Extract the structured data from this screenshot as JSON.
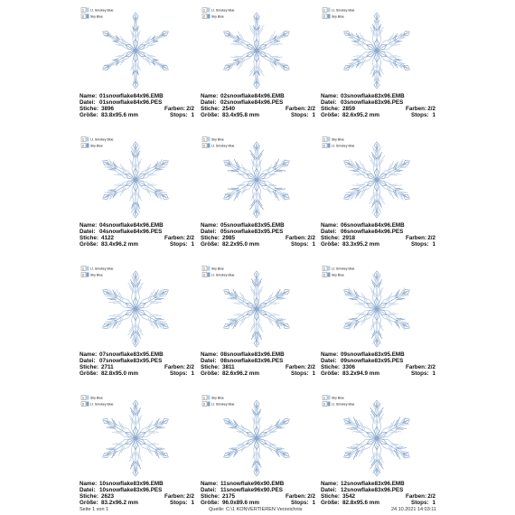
{
  "labels": {
    "name": "Name:",
    "file": "Datei:",
    "stitches": "Stiche:",
    "colors": "Farben:",
    "size": "Größe:",
    "stops": "Stops:"
  },
  "designs": [
    {
      "legend": [
        {
          "no": "1",
          "color": "Lt. Smokey Blue"
        },
        {
          "no": "2",
          "color": "Sky Blue"
        }
      ],
      "name": "01snowflake84x96.EMB",
      "file": "01snowflake84x96.PES",
      "stitches": "3896",
      "colors": "2/2",
      "size": "83.8x95.6 mm",
      "stops": "1"
    },
    {
      "legend": [
        {
          "no": "1",
          "color": "Lt. Smokey Blue"
        },
        {
          "no": "2",
          "color": "Sky Blue"
        }
      ],
      "name": "02snowflake84x96.EMB",
      "file": "02snowflake84x96.PES",
      "stitches": "2540",
      "colors": "2/2",
      "size": "83.4x95.8 mm",
      "stops": "1"
    },
    {
      "legend": [
        {
          "no": "1",
          "color": "Lt. Smokey Blue"
        },
        {
          "no": "2",
          "color": "Sky Blue"
        }
      ],
      "name": "03snowflake83x96.EMB",
      "file": "03snowflake83x96.PES",
      "stitches": "2859",
      "colors": "2/2",
      "size": "82.6x95.2 mm",
      "stops": "1"
    },
    {
      "legend": [
        {
          "no": "1",
          "color": "Lt. Smokey Blue"
        },
        {
          "no": "2",
          "color": "Sky Blue"
        }
      ],
      "name": "04snowflake84x96.EMB",
      "file": "04snowflake84x96.PES",
      "stitches": "4122",
      "colors": "2/2",
      "size": "83.4x96.2 mm",
      "stops": "1"
    },
    {
      "legend": [
        {
          "no": "1",
          "color": "Sky Blue"
        },
        {
          "no": "2",
          "color": "Lt. Smokey Blue"
        }
      ],
      "name": "05snowflake83x95.EMB",
      "file": "05snowflake83x95.PES",
      "stitches": "2985",
      "colors": "2/2",
      "size": "82.2x95.0 mm",
      "stops": "1"
    },
    {
      "legend": [
        {
          "no": "1",
          "color": "Sky Blue"
        },
        {
          "no": "2",
          "color": "Lt. Smokey Blue"
        }
      ],
      "name": "06snowflake84x96.EMB",
      "file": "06snowflake84x96.PES",
      "stitches": "2918",
      "colors": "2/2",
      "size": "83.3x95.2 mm",
      "stops": "1"
    },
    {
      "legend": [
        {
          "no": "1",
          "color": "Lt. Smokey Blue"
        },
        {
          "no": "2",
          "color": "Sky Blue"
        }
      ],
      "name": "07snowflake83x95.EMB",
      "file": "07snowflake83x95.PES",
      "stitches": "2711",
      "colors": "2/2",
      "size": "82.8x95.0 mm",
      "stops": "1"
    },
    {
      "legend": [
        {
          "no": "1",
          "color": "Sky Blue"
        },
        {
          "no": "2",
          "color": "Lt. Smokey Blue"
        }
      ],
      "name": "08snowflake83x96.EMB",
      "file": "08snowflake83x96.PES",
      "stitches": "3811",
      "colors": "2/2",
      "size": "82.6x96.2 mm",
      "stops": "1"
    },
    {
      "legend": [
        {
          "no": "1",
          "color": "Lt. Smokey Blue"
        },
        {
          "no": "2",
          "color": "Sky Blue"
        }
      ],
      "name": "09snowflake83x95.EMB",
      "file": "09snowflake83x95.PES",
      "stitches": "3306",
      "colors": "2/2",
      "size": "83.2x94.9 mm",
      "stops": "1"
    },
    {
      "legend": [
        {
          "no": "1",
          "color": "Sky Blue"
        },
        {
          "no": "2",
          "color": "Lt. Smokey Blue"
        }
      ],
      "name": "10snowflake83x96.EMB",
      "file": "10snowflake83x96.PES",
      "stitches": "2623",
      "colors": "2/2",
      "size": "83.2x96.2 mm",
      "stops": "1"
    },
    {
      "legend": [
        {
          "no": "1",
          "color": "Sky Blue"
        },
        {
          "no": "2",
          "color": "Lt. Smokey Blue"
        }
      ],
      "name": "11snowflake96x90.EMB",
      "file": "11snowflake96x90.PES",
      "stitches": "2175",
      "colors": "2/2",
      "size": "96.0x89.6 mm",
      "stops": "1"
    },
    {
      "legend": [
        {
          "no": "1",
          "color": "Sky Blue"
        },
        {
          "no": "2",
          "color": "Lt. Smokey Blue"
        }
      ],
      "name": "12snowflake83x96.EMB",
      "file": "12snowflake83x96.PES",
      "stitches": "3542",
      "colors": "2/2",
      "size": "82.8x95.6 mm",
      "stops": "1"
    }
  ],
  "footer": {
    "page": "Seite 1 von 1",
    "source": "Quelle: C:\\1 KONVERTIEREN Verzeichnis",
    "date": "24.10.2021 14:03:11"
  }
}
